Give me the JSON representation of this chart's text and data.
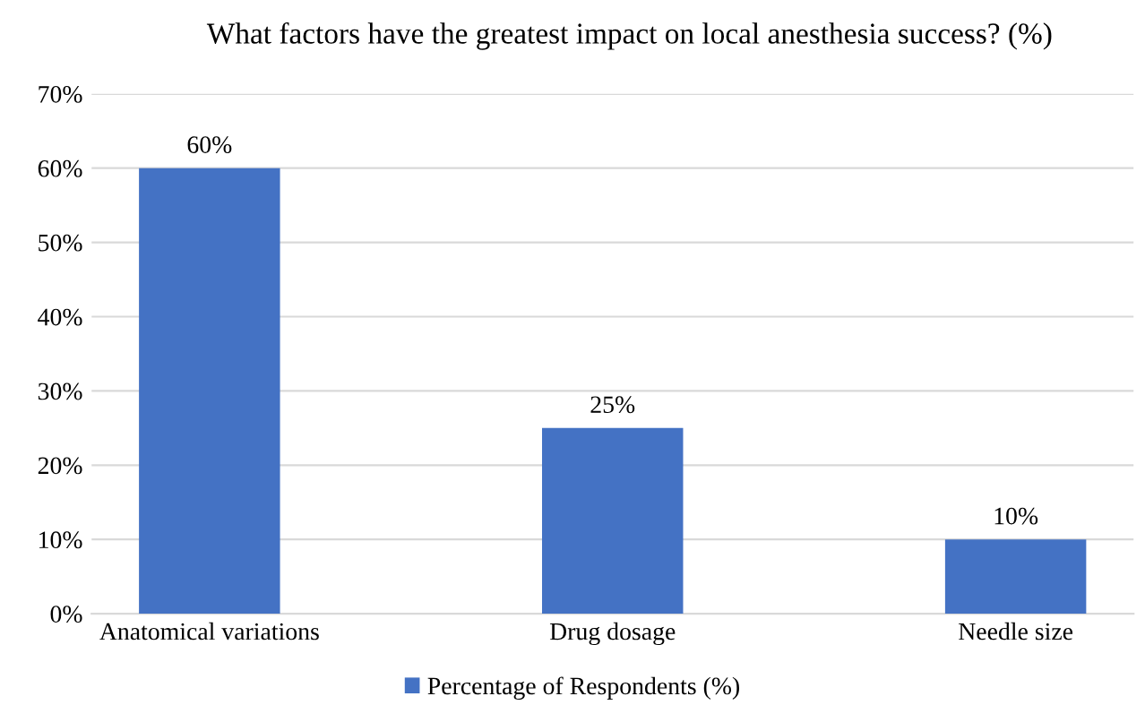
{
  "chart_data": {
    "type": "bar",
    "title": "What factors have the greatest impact on local anesthesia success? (%)",
    "categories": [
      "Anatomical variations",
      "Drug dosage",
      "Needle size"
    ],
    "series": [
      {
        "name": "Percentage of Respondents (%)",
        "color": "#4472c4",
        "values": [
          60,
          25,
          10
        ],
        "value_labels": [
          "60%",
          "25%",
          "10%"
        ]
      }
    ],
    "ylim": [
      0,
      70
    ],
    "yticks": [
      {
        "value": 0,
        "label": "0%"
      },
      {
        "value": 10,
        "label": "10%"
      },
      {
        "value": 20,
        "label": "20%"
      },
      {
        "value": 30,
        "label": "30%"
      },
      {
        "value": 40,
        "label": "40%"
      },
      {
        "value": 50,
        "label": "50%"
      },
      {
        "value": 60,
        "label": "60%"
      },
      {
        "value": 70,
        "label": "70%"
      }
    ],
    "grid": "y",
    "legend": "bottom"
  }
}
